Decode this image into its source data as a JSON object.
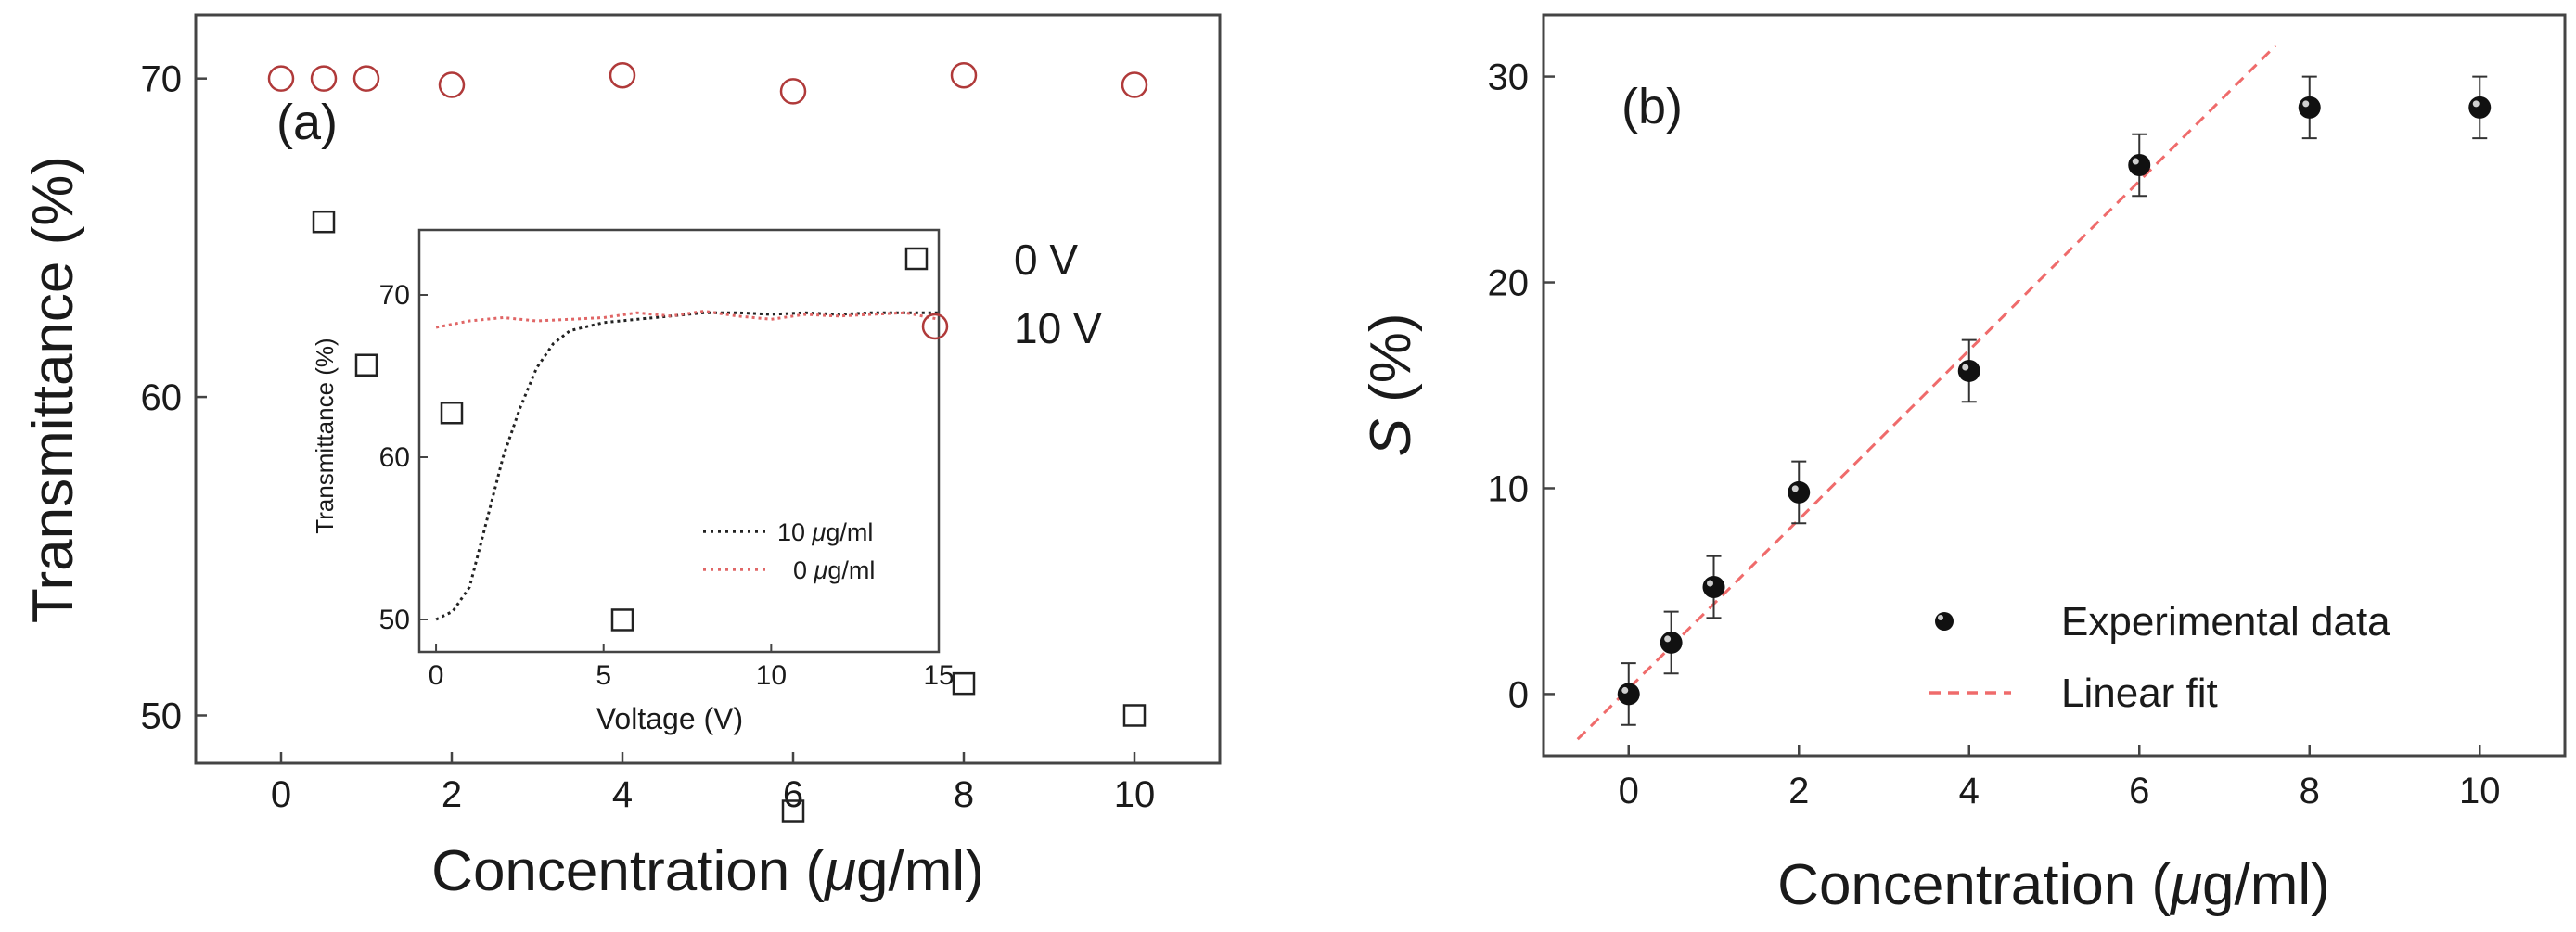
{
  "figure": {
    "panel_a_label": "(a)",
    "panel_b_label": "(b)"
  },
  "chart_data": [
    {
      "type": "scatter",
      "panel": "a",
      "xlabel_prefix": "Concentration (",
      "xlabel_mu": "μ",
      "xlabel_suffix": "g/ml)",
      "ylabel": "Transmittance (%)",
      "xlim": [
        -1,
        11
      ],
      "ylim": [
        48.5,
        72
      ],
      "xticks": [
        "0",
        "2",
        "4",
        "6",
        "8",
        "10"
      ],
      "xtick_values": [
        0,
        2,
        4,
        6,
        8,
        10
      ],
      "yticks": [
        "50",
        "60",
        "70"
      ],
      "ytick_values": [
        50,
        60,
        70
      ],
      "series": [
        {
          "name": "0 V",
          "marker": "square",
          "color": "#222222",
          "x": [
            0.5,
            1,
            2,
            4,
            6,
            8,
            10
          ],
          "y": [
            65.5,
            61,
            59.5,
            53,
            47,
            51,
            50
          ]
        },
        {
          "name": "10 V",
          "marker": "circle",
          "color": "#b03a3a",
          "x": [
            0,
            0.5,
            1,
            2,
            4,
            6,
            8,
            10
          ],
          "y": [
            70,
            70,
            70,
            69.8,
            70.1,
            69.6,
            70.1,
            69.8
          ]
        }
      ],
      "legend": [
        {
          "label": "0 V",
          "marker": "square"
        },
        {
          "label": "10 V",
          "marker": "circle"
        }
      ]
    },
    {
      "type": "line",
      "panel": "a-inset",
      "xlabel": "Voltage (V)",
      "ylabel": "Transmittance (%)",
      "xlim": [
        -0.5,
        15
      ],
      "ylim": [
        48,
        74
      ],
      "xticks": [
        "0",
        "5",
        "10",
        "15"
      ],
      "xtick_values": [
        0,
        5,
        10,
        15
      ],
      "yticks": [
        "50",
        "60",
        "70"
      ],
      "ytick_values": [
        50,
        60,
        70
      ],
      "series": [
        {
          "name_prefix": "10 ",
          "name_mu": "μ",
          "name_suffix": "g/ml",
          "color": "#222222",
          "style": "dotted",
          "x": [
            0,
            0.5,
            1,
            1.5,
            2,
            2.5,
            3,
            3.5,
            4,
            5,
            6,
            7,
            8,
            9,
            10,
            11,
            12,
            13,
            14,
            15
          ],
          "y": [
            50,
            50.5,
            52,
            56,
            60,
            63,
            65.5,
            67,
            67.8,
            68.3,
            68.5,
            68.7,
            68.9,
            68.9,
            68.8,
            68.9,
            68.8,
            68.9,
            68.9,
            68.9
          ]
        },
        {
          "name_prefix": "0 ",
          "name_mu": "μ",
          "name_suffix": "g/ml",
          "color": "#e06666",
          "style": "dotted",
          "x": [
            0,
            1,
            2,
            3,
            4,
            5,
            6,
            7,
            8,
            9,
            10,
            11,
            12,
            13,
            14,
            15
          ],
          "y": [
            68,
            68.4,
            68.6,
            68.4,
            68.5,
            68.6,
            68.9,
            68.7,
            69,
            68.7,
            68.5,
            68.8,
            68.7,
            68.8,
            68.9,
            68.5
          ]
        }
      ]
    },
    {
      "type": "scatter",
      "panel": "b",
      "xlabel_prefix": "Concentration (",
      "xlabel_mu": "μ",
      "xlabel_suffix": "g/ml)",
      "ylabel_var": "S",
      "ylabel_unit": " (%)",
      "xlim": [
        -1,
        11
      ],
      "ylim": [
        -3,
        33
      ],
      "xticks": [
        "0",
        "2",
        "4",
        "6",
        "8",
        "10"
      ],
      "xtick_values": [
        0,
        2,
        4,
        6,
        8,
        10
      ],
      "yticks": [
        "0",
        "10",
        "20",
        "30"
      ],
      "ytick_values": [
        0,
        10,
        20,
        30
      ],
      "series": [
        {
          "name": "Experimental data",
          "marker": "filled-circle",
          "color": "#111111",
          "x": [
            0,
            0.5,
            1,
            2,
            4,
            6,
            8,
            10
          ],
          "y": [
            0,
            2.5,
            5.2,
            9.8,
            15.7,
            25.7,
            28.5,
            28.5
          ],
          "error": [
            1.5,
            1.5,
            1.5,
            1.5,
            1.5,
            1.5,
            1.5,
            1.5
          ]
        }
      ],
      "fit": {
        "name": "Linear fit",
        "color": "#ef6b6b",
        "style": "dashed",
        "x": [
          -0.6,
          7.6
        ],
        "y": [
          -2.2,
          31.5
        ]
      },
      "legend": [
        {
          "label": "Experimental data",
          "marker": "filled-circle"
        },
        {
          "label": "Linear fit",
          "marker": "dashed-line"
        }
      ]
    }
  ]
}
